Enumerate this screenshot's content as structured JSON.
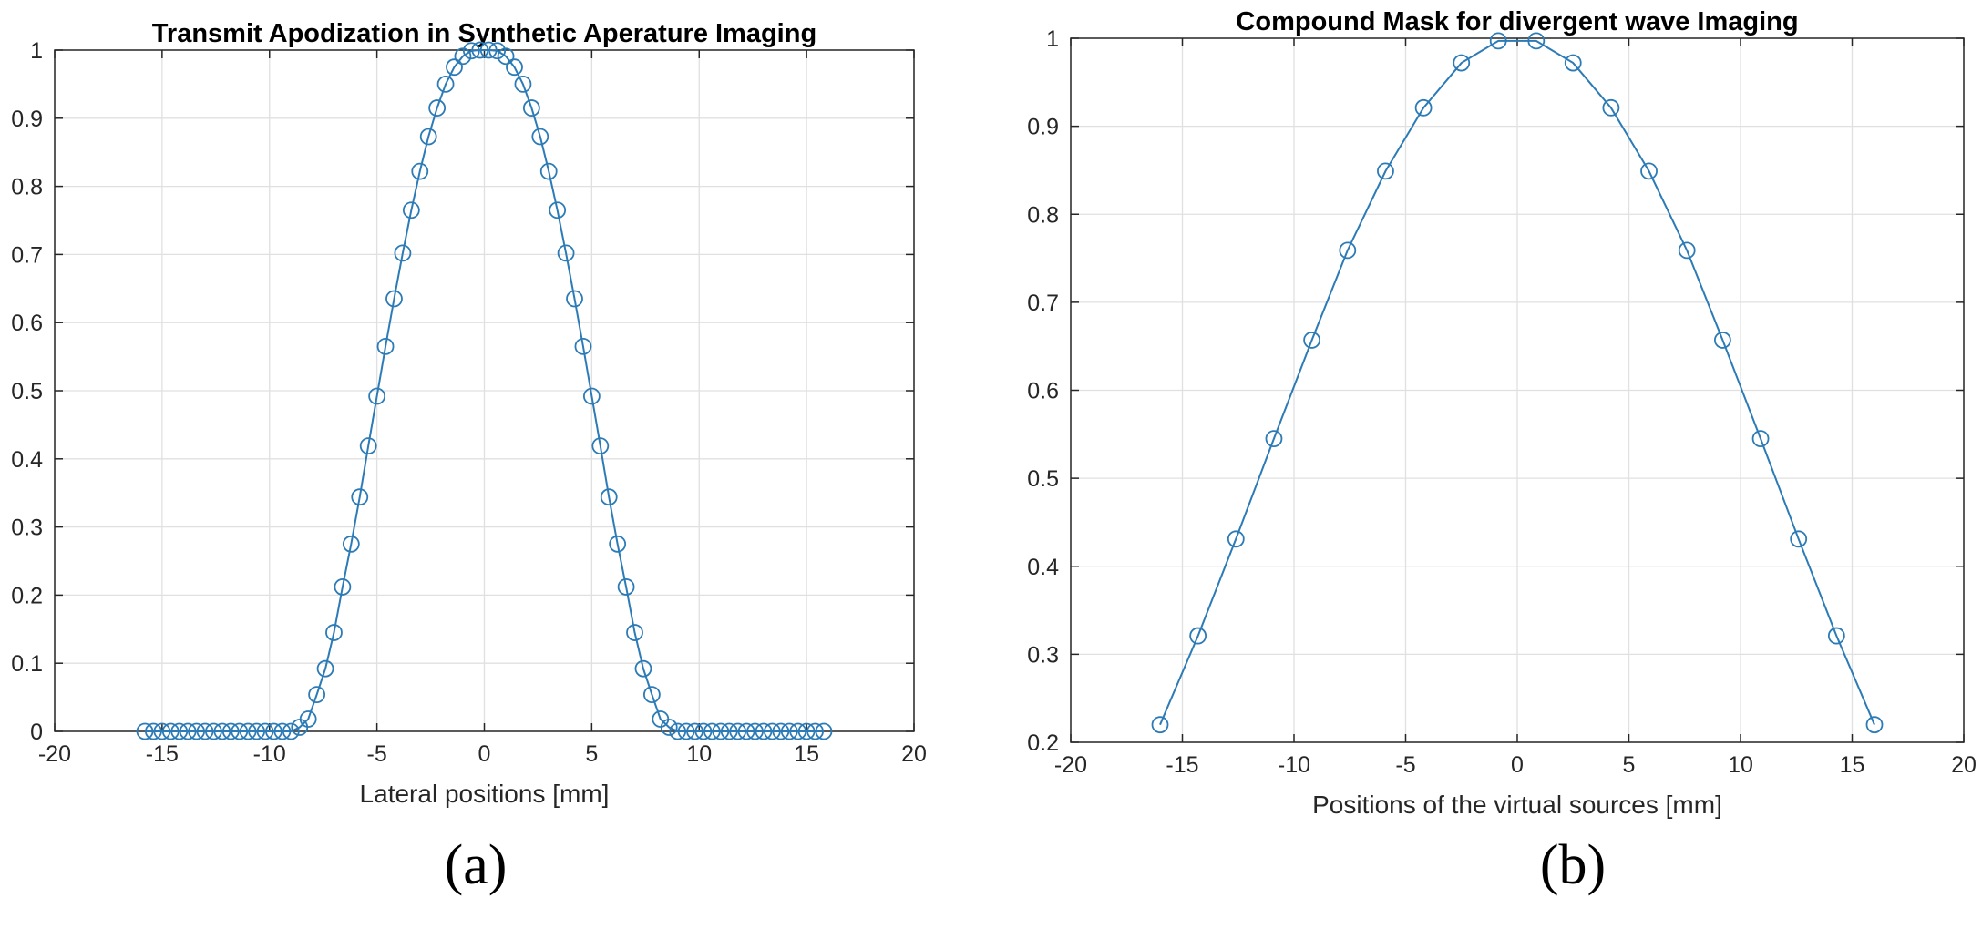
{
  "figure": {
    "panel_labels": [
      "(a)",
      "(b)"
    ]
  },
  "colors": {
    "series": "#2c7bb6",
    "grid": "#e0e0e0",
    "axes": "#262626"
  },
  "chart_data": [
    {
      "type": "line",
      "title": "Transmit Apodization in Synthetic Aperature Imaging",
      "xlabel": "Lateral positions [mm]",
      "ylabel": "",
      "xlim": [
        -20,
        20
      ],
      "ylim": [
        0,
        1
      ],
      "xticks": [
        -20,
        -15,
        -10,
        -5,
        0,
        5,
        10,
        15,
        20
      ],
      "yticks": [
        0,
        0.1,
        0.2,
        0.3,
        0.4,
        0.5,
        0.6,
        0.7,
        0.8,
        0.9,
        1
      ],
      "xtick_labels": [
        "-20",
        "-15",
        "-10",
        "-5",
        "0",
        "5",
        "10",
        "15",
        "20"
      ],
      "ytick_labels": [
        "0",
        "0.1",
        "0.2",
        "0.3",
        "0.4",
        "0.5",
        "0.6",
        "0.7",
        "0.8",
        "0.9",
        "1"
      ],
      "grid": true,
      "marker": "circle",
      "series": [
        {
          "x": [
            -15.8,
            -15.4,
            -15.0,
            -14.6,
            -14.2,
            -13.8,
            -13.4,
            -13.0,
            -12.6,
            -12.2,
            -11.8,
            -11.4,
            -11.0,
            -10.6,
            -10.2,
            -9.8,
            -9.4,
            -9.0,
            -8.6,
            -8.2,
            -7.8,
            -7.4,
            -7.0,
            -6.6,
            -6.2,
            -5.8,
            -5.4,
            -5.0,
            -4.6,
            -4.2,
            -3.8,
            -3.4,
            -3.0,
            -2.6,
            -2.2,
            -1.8,
            -1.4,
            -1.0,
            -0.6,
            -0.2,
            0.2,
            0.6,
            1.0,
            1.4,
            1.8,
            2.2,
            2.6,
            3.0,
            3.4,
            3.8,
            4.2,
            4.6,
            5.0,
            5.4,
            5.8,
            6.2,
            6.6,
            7.0,
            7.4,
            7.8,
            8.2,
            8.6,
            9.0,
            9.4,
            9.8,
            10.2,
            10.6,
            11.0,
            11.4,
            11.8,
            12.2,
            12.6,
            13.0,
            13.4,
            13.8,
            14.2,
            14.6,
            15.0,
            15.4,
            15.8
          ],
          "y": [
            0,
            0,
            0,
            0,
            0,
            0,
            0,
            0,
            0,
            0,
            0,
            0,
            0,
            0,
            0,
            0,
            0,
            0,
            0.006,
            0.018,
            0.054,
            0.092,
            0.145,
            0.212,
            0.275,
            0.344,
            0.419,
            0.492,
            0.565,
            0.635,
            0.702,
            0.765,
            0.822,
            0.873,
            0.915,
            0.95,
            0.975,
            0.991,
            0.999,
            1.0,
            1.0,
            0.999,
            0.991,
            0.975,
            0.95,
            0.915,
            0.873,
            0.822,
            0.765,
            0.702,
            0.635,
            0.565,
            0.492,
            0.419,
            0.344,
            0.275,
            0.212,
            0.145,
            0.092,
            0.054,
            0.018,
            0.006,
            0,
            0,
            0,
            0,
            0,
            0,
            0,
            0,
            0,
            0,
            0,
            0,
            0,
            0,
            0,
            0,
            0,
            0
          ]
        }
      ]
    },
    {
      "type": "line",
      "title": "Compound Mask for divergent wave Imaging",
      "xlabel": "Positions of the virtual sources [mm]",
      "ylabel": "",
      "xlim": [
        -20,
        20
      ],
      "ylim": [
        0.2,
        1
      ],
      "xticks": [
        -20,
        -15,
        -10,
        -5,
        0,
        5,
        10,
        15,
        20
      ],
      "yticks": [
        0.2,
        0.3,
        0.4,
        0.5,
        0.6,
        0.7,
        0.8,
        0.9,
        1
      ],
      "xtick_labels": [
        "-20",
        "-15",
        "-10",
        "-5",
        "0",
        "5",
        "10",
        "15",
        "20"
      ],
      "ytick_labels": [
        "0.2",
        "0.3",
        "0.4",
        "0.5",
        "0.6",
        "0.7",
        "0.8",
        "0.9",
        "1"
      ],
      "grid": true,
      "marker": "circle",
      "series": [
        {
          "x": [
            -16.0,
            -14.3,
            -12.6,
            -10.9,
            -9.2,
            -7.6,
            -5.9,
            -4.2,
            -2.5,
            -0.85,
            0.85,
            2.5,
            4.2,
            5.9,
            7.6,
            9.2,
            10.9,
            12.6,
            14.3,
            16.0
          ],
          "y": [
            0.22,
            0.321,
            0.431,
            0.545,
            0.657,
            0.759,
            0.849,
            0.921,
            0.972,
            0.997,
            0.997,
            0.972,
            0.921,
            0.849,
            0.759,
            0.657,
            0.545,
            0.431,
            0.321,
            0.22
          ]
        }
      ]
    }
  ]
}
